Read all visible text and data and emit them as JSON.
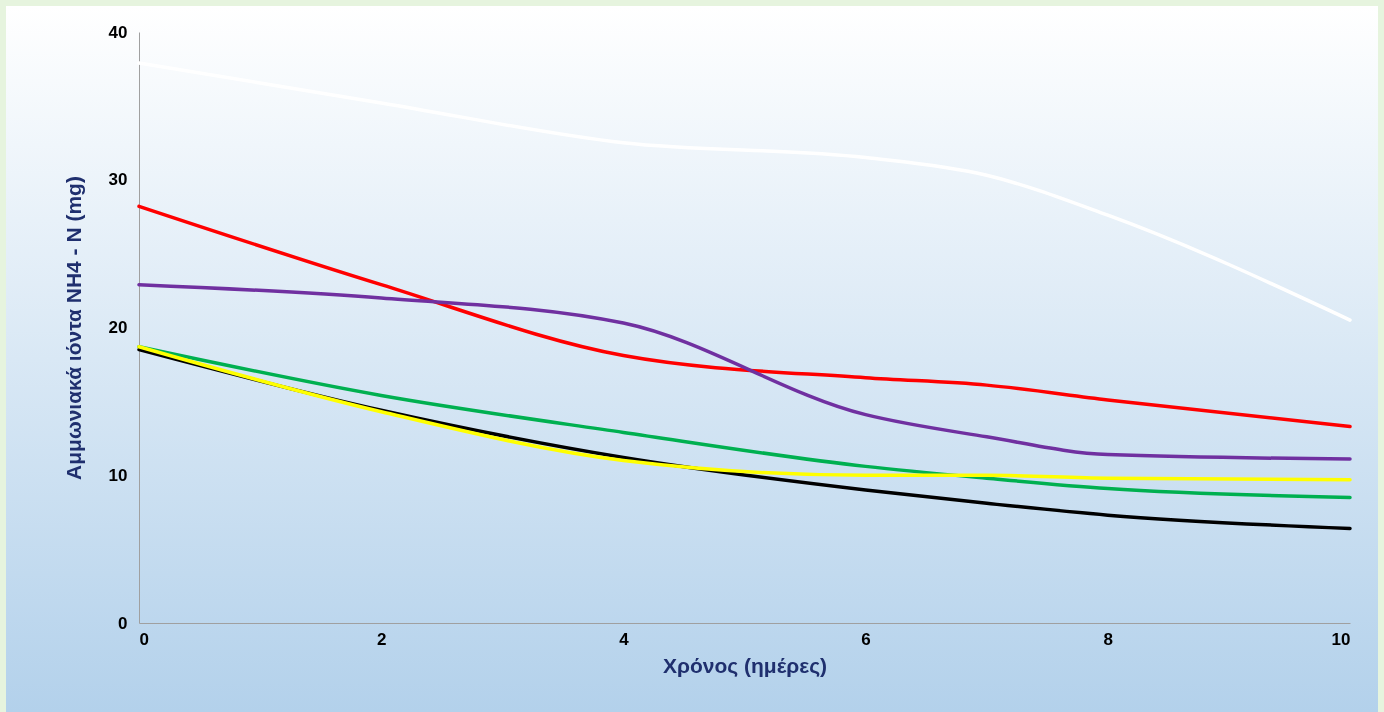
{
  "chart_data": {
    "type": "line",
    "xlabel": "Χρόνος (ημέρες)",
    "ylabel": "Αμμωνιακά ιόντα NH4 - N (mg)",
    "x": [
      0,
      2,
      4,
      6,
      7,
      8,
      10
    ],
    "series": [
      {
        "color": "#ffffff",
        "values": [
          37.9,
          35.2,
          32.5,
          31.5,
          30.3,
          27.6,
          20.5
        ]
      },
      {
        "color": "#ff0000",
        "values": [
          28.2,
          22.9,
          18.1,
          16.6,
          16.1,
          15.1,
          13.3
        ]
      },
      {
        "color": "#7030a0",
        "values": [
          22.9,
          22.0,
          20.3,
          14.1,
          12.6,
          11.4,
          11.1
        ]
      },
      {
        "color": "#00b050",
        "values": [
          18.7,
          15.4,
          12.9,
          10.6,
          9.8,
          9.1,
          8.5
        ]
      },
      {
        "color": "#000000",
        "values": [
          18.5,
          14.4,
          11.2,
          9.0,
          8.1,
          7.3,
          6.4
        ]
      },
      {
        "color": "#ffff00",
        "values": [
          18.7,
          14.3,
          11.0,
          10.0,
          10.0,
          9.8,
          9.7
        ]
      }
    ],
    "xlim": [
      0,
      10
    ],
    "xticks": [
      0,
      2,
      4,
      6,
      8,
      10
    ],
    "ylim": [
      0,
      40
    ],
    "yticks": [
      0,
      10,
      20,
      30,
      40
    ],
    "grid": false
  }
}
